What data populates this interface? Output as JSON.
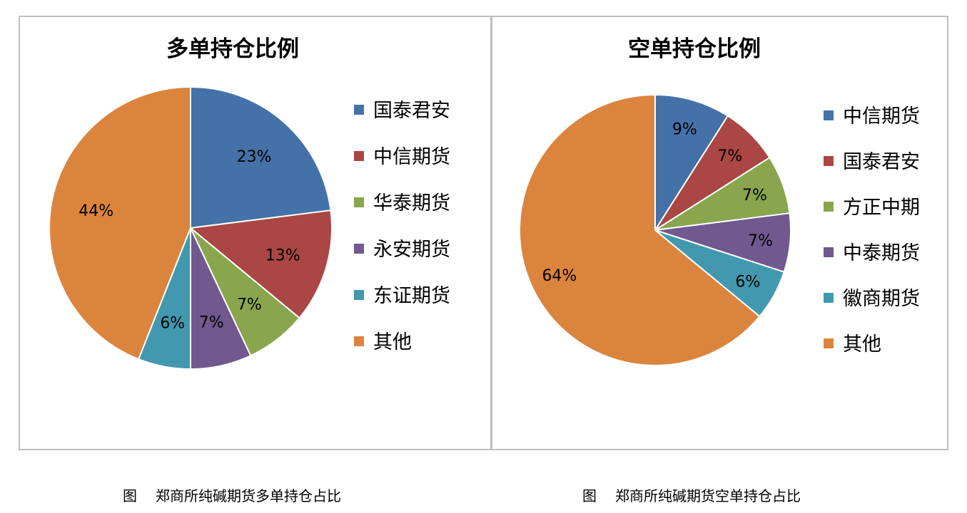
{
  "colors": {
    "blue": "#4472A8",
    "red": "#AA4643",
    "green": "#89A54E",
    "purple": "#71588F",
    "teal": "#4198AF",
    "orange": "#DB843D"
  },
  "chart_data": [
    {
      "type": "pie",
      "title": "多单持仓比例",
      "labels": [
        "国泰君安",
        "中信期货",
        "华泰期货",
        "永安期货",
        "东证期货",
        "其他"
      ],
      "values": [
        23,
        13,
        7,
        7,
        6,
        44
      ],
      "value_labels": [
        "23%",
        "13%",
        "7%",
        "7%",
        "6%",
        "44%"
      ],
      "colors": [
        "#4472A8",
        "#AA4643",
        "#89A54E",
        "#71588F",
        "#4198AF",
        "#DB843D"
      ],
      "legend_position": "right"
    },
    {
      "type": "pie",
      "title": "空单持仓比例",
      "labels": [
        "中信期货",
        "国泰君安",
        "方正中期",
        "中泰期货",
        "徽商期货",
        "其他"
      ],
      "values": [
        9,
        7,
        7,
        7,
        6,
        64
      ],
      "value_labels": [
        "9%",
        "7%",
        "7%",
        "7%",
        "6%",
        "64%"
      ],
      "colors": [
        "#4472A8",
        "#AA4643",
        "#89A54E",
        "#71588F",
        "#4198AF",
        "#DB843D"
      ],
      "legend_position": "right"
    }
  ],
  "captions": [
    {
      "fig": "图",
      "text": "郑商所纯碱期货多单持仓占比"
    },
    {
      "fig": "图",
      "text": "郑商所纯碱期货空单持仓占比"
    }
  ]
}
